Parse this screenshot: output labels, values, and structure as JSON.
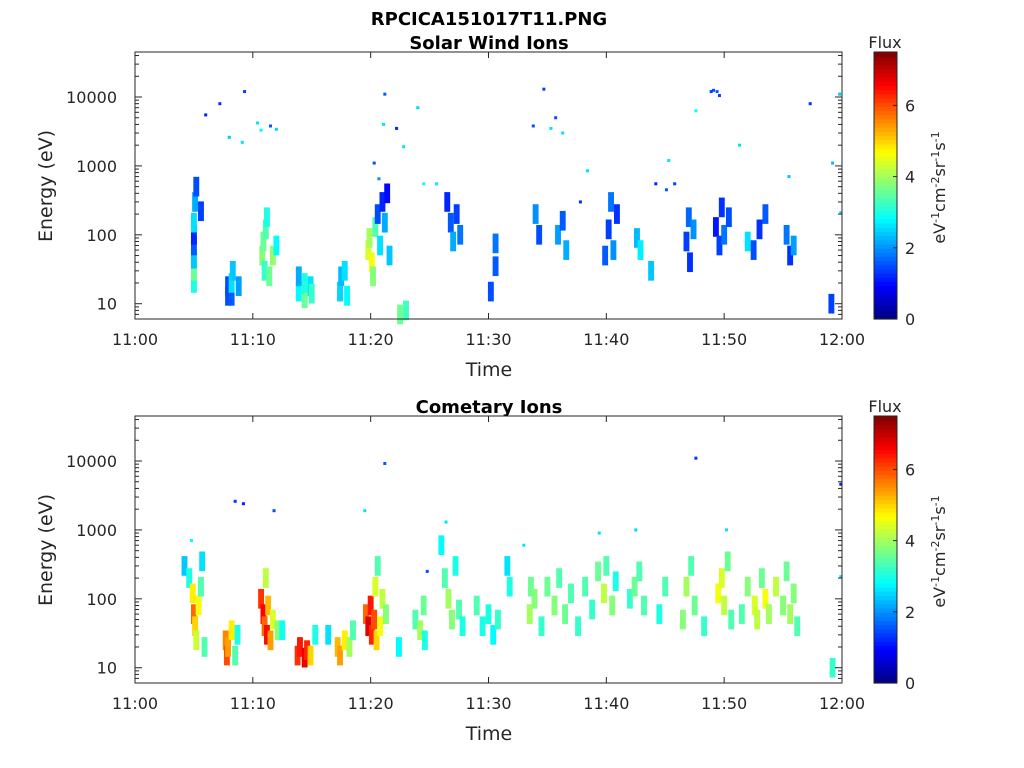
{
  "figure": {
    "filename": "RPCICA151017T11.PNG"
  },
  "colormap": "jet",
  "chart_data": [
    {
      "type": "heatmap",
      "title": "Solar Wind Ions",
      "xlabel": "Time",
      "ylabel": "Energy (eV)",
      "x_ticks": [
        "11:00",
        "11:10",
        "11:20",
        "11:30",
        "11:40",
        "11:50",
        "12:00"
      ],
      "x_range_minutes": [
        0,
        60
      ],
      "y_scale": "log",
      "y_ticks": [
        10,
        100,
        1000,
        10000
      ],
      "y_tick_labels": [
        "10",
        "100",
        "1000",
        "10000"
      ],
      "y_range": [
        6,
        45000
      ],
      "colorbar": {
        "title": "Flux",
        "label": "eV-1cm-2sr-1s-1",
        "label_parts": [
          [
            "eV",
            ""
          ],
          [
            "-1",
            "sup"
          ],
          [
            "cm",
            ""
          ],
          [
            "-2",
            "sup"
          ],
          [
            "sr",
            ""
          ],
          [
            "-1",
            "sup"
          ],
          [
            "s",
            ""
          ],
          [
            "-1",
            "sup"
          ]
        ],
        "range": [
          0,
          7.5
        ],
        "ticks": [
          0,
          2,
          4,
          6
        ]
      },
      "cells": [
        [
          5.0,
          20,
          3.0
        ],
        [
          5.0,
          30,
          3.6
        ],
        [
          5.0,
          45,
          2.4
        ],
        [
          5.0,
          70,
          1.6
        ],
        [
          5.0,
          100,
          1.2
        ],
        [
          5.0,
          150,
          2.6
        ],
        [
          5.1,
          300,
          2.2
        ],
        [
          5.2,
          500,
          1.5
        ],
        [
          5.6,
          220,
          1.4
        ],
        [
          7.9,
          13,
          1.5
        ],
        [
          7.9,
          18,
          1.5
        ],
        [
          8.2,
          13,
          1.6
        ],
        [
          8.2,
          20,
          2.6
        ],
        [
          8.3,
          30,
          2.4
        ],
        [
          8.8,
          18,
          2.1
        ],
        [
          10.8,
          50,
          3.8
        ],
        [
          10.9,
          80,
          3.6
        ],
        [
          11.0,
          30,
          3.2
        ],
        [
          11.1,
          120,
          3.4
        ],
        [
          11.2,
          180,
          3.0
        ],
        [
          11.4,
          25,
          3.6
        ],
        [
          11.7,
          50,
          3.9
        ],
        [
          12.0,
          70,
          2.8
        ],
        [
          13.9,
          15,
          2.8
        ],
        [
          13.9,
          25,
          2.2
        ],
        [
          14.4,
          12,
          3.6
        ],
        [
          14.4,
          20,
          3.0
        ],
        [
          14.9,
          18,
          2.6
        ],
        [
          15.0,
          14,
          3.2
        ],
        [
          17.4,
          15,
          2.5
        ],
        [
          17.5,
          25,
          2.3
        ],
        [
          17.8,
          30,
          2.6
        ],
        [
          18.0,
          13,
          2.8
        ],
        [
          19.8,
          60,
          4.4
        ],
        [
          19.9,
          90,
          4.0
        ],
        [
          20.1,
          40,
          4.6
        ],
        [
          20.2,
          25,
          3.8
        ],
        [
          20.4,
          130,
          3.4
        ],
        [
          20.6,
          200,
          1.5
        ],
        [
          20.8,
          70,
          2.6
        ],
        [
          21.0,
          300,
          1.2
        ],
        [
          21.2,
          150,
          2.2
        ],
        [
          21.4,
          400,
          1.0
        ],
        [
          21.6,
          50,
          2.4
        ],
        [
          22.5,
          7,
          3.6
        ],
        [
          23.0,
          8,
          3.3
        ],
        [
          26.5,
          300,
          1.2
        ],
        [
          26.8,
          150,
          1.6
        ],
        [
          27.0,
          80,
          2.2
        ],
        [
          27.3,
          200,
          1.4
        ],
        [
          27.6,
          100,
          1.8
        ],
        [
          30.6,
          35,
          1.6
        ],
        [
          30.6,
          75,
          1.8
        ],
        [
          30.2,
          15,
          1.5
        ],
        [
          34.0,
          200,
          2.0
        ],
        [
          34.3,
          100,
          1.5
        ],
        [
          35.9,
          100,
          2.1
        ],
        [
          36.3,
          160,
          1.6
        ],
        [
          36.6,
          60,
          2.2
        ],
        [
          39.9,
          50,
          1.6
        ],
        [
          40.2,
          120,
          1.4
        ],
        [
          40.4,
          300,
          1.8
        ],
        [
          40.6,
          60,
          2.0
        ],
        [
          40.9,
          200,
          1.3
        ],
        [
          42.6,
          90,
          2.3
        ],
        [
          42.9,
          60,
          2.7
        ],
        [
          43.8,
          30,
          2.4
        ],
        [
          46.8,
          80,
          1.4
        ],
        [
          47.0,
          180,
          1.7
        ],
        [
          47.1,
          40,
          1.3
        ],
        [
          47.4,
          120,
          2.0
        ],
        [
          49.3,
          130,
          1.1
        ],
        [
          49.6,
          70,
          1.4
        ],
        [
          49.8,
          250,
          1.3
        ],
        [
          50.0,
          100,
          1.8
        ],
        [
          50.4,
          180,
          1.5
        ],
        [
          52.0,
          80,
          2.6
        ],
        [
          52.5,
          60,
          1.5
        ],
        [
          53.0,
          120,
          1.3
        ],
        [
          53.5,
          200,
          1.6
        ],
        [
          55.3,
          100,
          1.8
        ],
        [
          55.6,
          50,
          1.3
        ],
        [
          55.9,
          70,
          2.1
        ],
        [
          59.1,
          10,
          1.4
        ]
      ],
      "dots": [
        [
          6.0,
          5500,
          1.2
        ],
        [
          7.2,
          8000,
          1.3
        ],
        [
          8.0,
          2600,
          2.4
        ],
        [
          9.3,
          12000,
          1.4
        ],
        [
          9.1,
          2200,
          2.6
        ],
        [
          10.4,
          4200,
          2.6
        ],
        [
          10.7,
          3300,
          2.8
        ],
        [
          11.5,
          3800,
          1.6
        ],
        [
          12.0,
          3400,
          2.5
        ],
        [
          20.3,
          1100,
          1.5
        ],
        [
          20.7,
          650,
          2.0
        ],
        [
          21.2,
          11000,
          1.6
        ],
        [
          21.1,
          4000,
          2.6
        ],
        [
          22.2,
          3500,
          1.2
        ],
        [
          22.8,
          1900,
          2.6
        ],
        [
          24.0,
          7000,
          2.5
        ],
        [
          24.5,
          550,
          2.9
        ],
        [
          25.6,
          550,
          2.6
        ],
        [
          33.8,
          3800,
          1.5
        ],
        [
          34.7,
          13000,
          1.4
        ],
        [
          35.3,
          3500,
          2.6
        ],
        [
          35.7,
          5000,
          1.5
        ],
        [
          36.3,
          3000,
          2.6
        ],
        [
          37.8,
          300,
          1.3
        ],
        [
          38.4,
          850,
          2.6
        ],
        [
          44.2,
          550,
          1.2
        ],
        [
          45.1,
          450,
          1.6
        ],
        [
          45.3,
          1200,
          2.6
        ],
        [
          45.8,
          550,
          1.4
        ],
        [
          47.6,
          6300,
          2.8
        ],
        [
          48.9,
          12000,
          1.4
        ],
        [
          49.1,
          12500,
          1.5
        ],
        [
          49.4,
          12000,
          1.6
        ],
        [
          49.6,
          10500,
          1.4
        ],
        [
          51.3,
          2000,
          2.6
        ],
        [
          55.5,
          700,
          2.4
        ],
        [
          57.3,
          8000,
          1.3
        ],
        [
          59.2,
          1100,
          2.3
        ],
        [
          59.8,
          11000,
          2.4
        ],
        [
          59.9,
          210,
          2.6
        ]
      ]
    },
    {
      "type": "heatmap",
      "title": "Cometary Ions",
      "xlabel": "Time",
      "ylabel": "Energy (eV)",
      "x_ticks": [
        "11:00",
        "11:10",
        "11:20",
        "11:30",
        "11:40",
        "11:50",
        "12:00"
      ],
      "x_range_minutes": [
        0,
        60
      ],
      "y_scale": "log",
      "y_ticks": [
        10,
        100,
        1000,
        10000
      ],
      "y_tick_labels": [
        "10",
        "100",
        "1000",
        "10000"
      ],
      "y_range": [
        6,
        45000
      ],
      "colorbar": {
        "title": "Flux",
        "label": "eV-1cm-2sr-1s-1",
        "label_parts": [
          [
            "eV",
            ""
          ],
          [
            "-1",
            "sup"
          ],
          [
            "cm",
            ""
          ],
          [
            "-2",
            "sup"
          ],
          [
            "sr",
            ""
          ],
          [
            "-1",
            "sup"
          ],
          [
            "s",
            ""
          ],
          [
            "-1",
            "sup"
          ]
        ],
        "range": [
          0,
          7.5
        ],
        "ticks": [
          0,
          2,
          4,
          6
        ]
      },
      "cells": [
        [
          4.2,
          300,
          2.4
        ],
        [
          4.6,
          200,
          3.0
        ],
        [
          4.9,
          120,
          4.8
        ],
        [
          5.0,
          60,
          5.8
        ],
        [
          5.1,
          40,
          5.0
        ],
        [
          5.2,
          25,
          4.3
        ],
        [
          5.4,
          80,
          4.6
        ],
        [
          5.6,
          150,
          3.4
        ],
        [
          5.7,
          350,
          2.6
        ],
        [
          5.9,
          20,
          3.4
        ],
        [
          7.7,
          25,
          5.6
        ],
        [
          7.8,
          15,
          6.0
        ],
        [
          7.9,
          20,
          5.4
        ],
        [
          8.2,
          35,
          4.8
        ],
        [
          8.5,
          15,
          3.4
        ],
        [
          8.7,
          30,
          3.0
        ],
        [
          10.7,
          100,
          6.2
        ],
        [
          10.9,
          60,
          6.6
        ],
        [
          11.0,
          40,
          5.8
        ],
        [
          11.2,
          30,
          6.5
        ],
        [
          11.3,
          80,
          5.2
        ],
        [
          11.1,
          200,
          4.2
        ],
        [
          11.5,
          25,
          5.4
        ],
        [
          11.7,
          50,
          4.4
        ],
        [
          12.1,
          35,
          3.8
        ],
        [
          12.5,
          35,
          2.9
        ],
        [
          13.8,
          15,
          6.2
        ],
        [
          14.0,
          20,
          6.4
        ],
        [
          14.4,
          14,
          6.7
        ],
        [
          14.6,
          18,
          6.3
        ],
        [
          14.9,
          15,
          5.0
        ],
        [
          15.3,
          30,
          3.0
        ],
        [
          16.4,
          30,
          2.6
        ],
        [
          17.2,
          20,
          5.2
        ],
        [
          17.4,
          15,
          5.4
        ],
        [
          17.8,
          25,
          4.8
        ],
        [
          18.2,
          20,
          4.0
        ],
        [
          18.5,
          35,
          3.4
        ],
        [
          19.6,
          60,
          5.8
        ],
        [
          19.8,
          40,
          6.8
        ],
        [
          20.0,
          80,
          6.4
        ],
        [
          20.1,
          30,
          6.3
        ],
        [
          20.3,
          50,
          6.0
        ],
        [
          20.5,
          25,
          5.0
        ],
        [
          20.4,
          150,
          4.4
        ],
        [
          20.6,
          300,
          3.4
        ],
        [
          20.8,
          40,
          4.6
        ],
        [
          21.0,
          100,
          4.2
        ],
        [
          21.3,
          60,
          3.8
        ],
        [
          22.4,
          20,
          2.8
        ],
        [
          23.8,
          50,
          3.4
        ],
        [
          24.2,
          35,
          4.0
        ],
        [
          24.5,
          80,
          3.6
        ],
        [
          24.6,
          25,
          3.0
        ],
        [
          26.0,
          600,
          2.8
        ],
        [
          26.3,
          200,
          3.4
        ],
        [
          26.6,
          100,
          4.0
        ],
        [
          26.9,
          50,
          3.8
        ],
        [
          27.2,
          300,
          3.0
        ],
        [
          27.5,
          70,
          3.4
        ],
        [
          27.8,
          40,
          3.0
        ],
        [
          29.0,
          80,
          3.4
        ],
        [
          29.5,
          40,
          3.0
        ],
        [
          30.0,
          60,
          3.0
        ],
        [
          30.4,
          30,
          2.8
        ],
        [
          30.8,
          50,
          3.2
        ],
        [
          31.6,
          300,
          2.6
        ],
        [
          31.8,
          150,
          3.0
        ],
        [
          33.5,
          60,
          4.0
        ],
        [
          33.6,
          150,
          3.6
        ],
        [
          33.9,
          100,
          3.8
        ],
        [
          34.5,
          40,
          3.2
        ],
        [
          35.0,
          150,
          3.6
        ],
        [
          35.6,
          80,
          3.8
        ],
        [
          36.0,
          200,
          3.4
        ],
        [
          36.5,
          60,
          3.6
        ],
        [
          37.0,
          120,
          3.4
        ],
        [
          37.6,
          40,
          3.2
        ],
        [
          38.2,
          150,
          3.4
        ],
        [
          38.8,
          70,
          3.2
        ],
        [
          39.3,
          250,
          3.6
        ],
        [
          39.8,
          120,
          4.2
        ],
        [
          40.0,
          300,
          3.4
        ],
        [
          40.5,
          80,
          3.8
        ],
        [
          40.8,
          180,
          3.0
        ],
        [
          42.0,
          100,
          3.2
        ],
        [
          42.4,
          150,
          3.6
        ],
        [
          42.8,
          250,
          3.4
        ],
        [
          43.2,
          80,
          3.4
        ],
        [
          44.5,
          60,
          3.0
        ],
        [
          45.0,
          150,
          3.4
        ],
        [
          46.5,
          50,
          3.8
        ],
        [
          46.8,
          150,
          4.0
        ],
        [
          47.2,
          300,
          3.4
        ],
        [
          47.5,
          80,
          3.6
        ],
        [
          48.3,
          40,
          3.2
        ],
        [
          49.5,
          120,
          4.6
        ],
        [
          49.8,
          200,
          4.4
        ],
        [
          50.0,
          80,
          4.2
        ],
        [
          50.3,
          350,
          3.6
        ],
        [
          50.6,
          50,
          3.4
        ],
        [
          51.5,
          60,
          3.4
        ],
        [
          52.0,
          150,
          3.8
        ],
        [
          52.6,
          80,
          4.4
        ],
        [
          52.8,
          50,
          4.2
        ],
        [
          53.2,
          200,
          3.6
        ],
        [
          53.5,
          100,
          4.6
        ],
        [
          53.8,
          60,
          4.0
        ],
        [
          54.4,
          150,
          4.2
        ],
        [
          55.0,
          80,
          3.8
        ],
        [
          55.3,
          250,
          3.6
        ],
        [
          55.6,
          60,
          4.0
        ],
        [
          55.9,
          120,
          3.8
        ],
        [
          56.2,
          40,
          3.4
        ],
        [
          59.2,
          10,
          3.2
        ]
      ],
      "dots": [
        [
          4.8,
          700,
          2.8
        ],
        [
          8.5,
          2600,
          1.3
        ],
        [
          9.2,
          2400,
          1.2
        ],
        [
          11.8,
          1900,
          1.5
        ],
        [
          19.5,
          1900,
          2.6
        ],
        [
          21.2,
          9200,
          1.6
        ],
        [
          24.8,
          250,
          1.5
        ],
        [
          26.4,
          1300,
          2.6
        ],
        [
          33.0,
          600,
          2.6
        ],
        [
          39.4,
          900,
          2.6
        ],
        [
          42.5,
          1000,
          2.5
        ],
        [
          47.6,
          11000,
          1.3
        ],
        [
          50.2,
          1000,
          2.6
        ],
        [
          59.9,
          210,
          2.6
        ],
        [
          59.9,
          4600,
          1.2
        ]
      ]
    }
  ]
}
